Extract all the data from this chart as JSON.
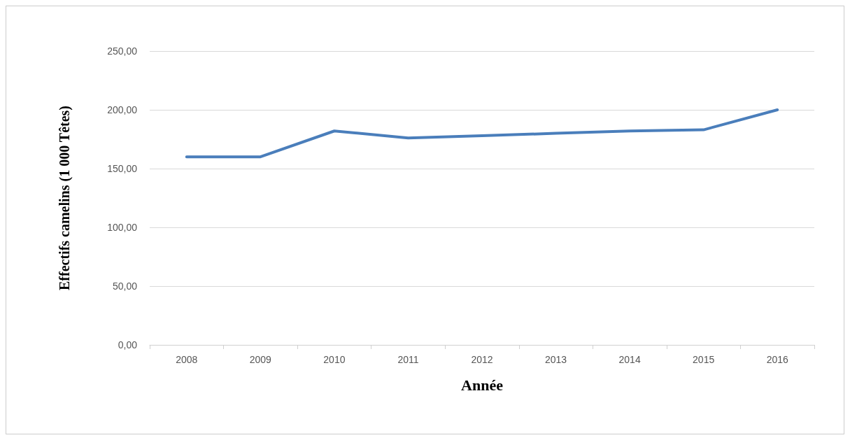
{
  "chart_data": {
    "type": "line",
    "xlabel": "Année",
    "ylabel": "Effectifs camelins (1 000 Têtes)",
    "categories": [
      "2008",
      "2009",
      "2010",
      "2011",
      "2012",
      "2013",
      "2014",
      "2015",
      "2016"
    ],
    "series": [
      {
        "color": "#4a7ebb",
        "values": [
          160,
          160,
          182,
          176,
          178,
          180,
          182,
          183,
          200
        ]
      }
    ],
    "ylim": [
      0,
      250
    ],
    "yticks": [
      {
        "value": 0,
        "label": "0,00"
      },
      {
        "value": 50,
        "label": "50,00"
      },
      {
        "value": 100,
        "label": "100,00"
      },
      {
        "value": 150,
        "label": "150,00"
      },
      {
        "value": 200,
        "label": "200,00"
      },
      {
        "value": 250,
        "label": "250,00"
      }
    ],
    "grid": "y",
    "marker": "none",
    "line_style": "solid"
  }
}
